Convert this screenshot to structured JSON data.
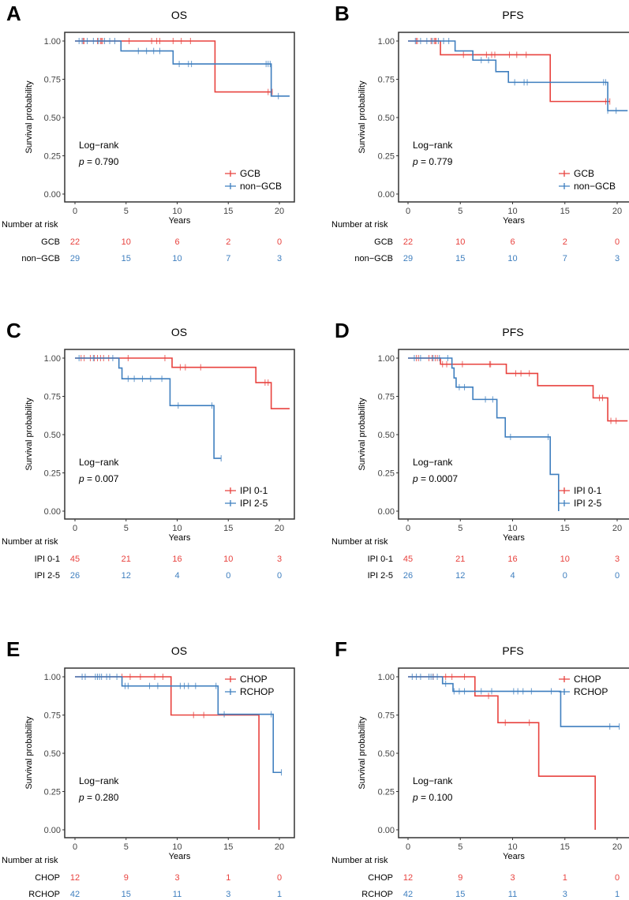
{
  "colors": {
    "group1": "#e8423e",
    "group2": "#3f7fbf",
    "axis": "#333333"
  },
  "common": {
    "ylabel": "Survival probability",
    "xlabel": "Years",
    "risk_title": "Number at risk",
    "logrank": "Log−rank",
    "p_prefix": "p",
    "xticks": [
      0,
      5,
      10,
      15,
      20
    ],
    "yticks": [
      "0.00",
      "0.25",
      "0.50",
      "0.75",
      "1.00"
    ],
    "ylim": [
      0,
      1
    ],
    "xlim": [
      -1,
      21.5
    ]
  },
  "chart_data": [
    {
      "type": "line",
      "letter": "A",
      "title": "OS",
      "p_value": "= 0.790",
      "legend_position": "bottom-right",
      "series": [
        {
          "name": "GCB",
          "steps": [
            [
              0,
              1
            ],
            [
              13.7,
              0.667
            ]
          ],
          "end": 19.3,
          "censors": [
            0.8,
            0.9,
            2.2,
            2.5,
            2.6,
            2.7,
            5.3,
            7.5,
            8,
            8.3,
            9.6,
            10.4,
            11.3,
            18.9,
            19.3
          ],
          "at_risk": [
            22,
            10,
            6,
            2,
            0
          ]
        },
        {
          "name": "non−GCB",
          "steps": [
            [
              0,
              1
            ],
            [
              4.5,
              0.935
            ],
            [
              9.6,
              0.85
            ],
            [
              19.2,
              0.64
            ]
          ],
          "end": 21,
          "censors": [
            0.4,
            0.7,
            1.2,
            1.8,
            2.3,
            2.9,
            3.4,
            3.9,
            6.2,
            7,
            7.7,
            8.3,
            10.2,
            11.1,
            11.4,
            18.7,
            18.9,
            19.1,
            19.9
          ],
          "at_risk": [
            29,
            15,
            10,
            7,
            3
          ]
        }
      ]
    },
    {
      "type": "line",
      "letter": "B",
      "title": "PFS",
      "p_value": "= 0.779",
      "legend_position": "bottom-right",
      "series": [
        {
          "name": "GCB",
          "steps": [
            [
              0,
              1
            ],
            [
              3.1,
              0.91
            ],
            [
              13.6,
              0.605
            ]
          ],
          "end": 19.3,
          "censors": [
            0.8,
            0.9,
            2.2,
            2.5,
            2.6,
            2.7,
            5.3,
            7.5,
            8,
            8.3,
            9.7,
            10.4,
            11.3,
            18.9,
            19.3
          ],
          "at_risk": [
            22,
            10,
            6,
            2,
            0
          ]
        },
        {
          "name": "non−GCB",
          "steps": [
            [
              0,
              1
            ],
            [
              4.5,
              0.935
            ],
            [
              6.2,
              0.875
            ],
            [
              8.4,
              0.8
            ],
            [
              9.6,
              0.73
            ],
            [
              19.1,
              0.545
            ]
          ],
          "end": 21,
          "censors": [
            0.7,
            1.2,
            1.8,
            2.3,
            2.9,
            3.4,
            3.9,
            7,
            7.7,
            10.2,
            11.1,
            11.4,
            18.7,
            18.9,
            19.1,
            19.9
          ],
          "at_risk": [
            29,
            15,
            10,
            7,
            3
          ]
        }
      ]
    },
    {
      "type": "line",
      "letter": "C",
      "title": "OS",
      "p_value": "= 0.007",
      "legend_position": "bottom-right",
      "series": [
        {
          "name": "IPI 0-1",
          "steps": [
            [
              0,
              1
            ],
            [
              9.5,
              0.94
            ],
            [
              17.7,
              0.84
            ],
            [
              19.2,
              0.67
            ]
          ],
          "end": 21,
          "censors": [
            0.6,
            0.9,
            1.5,
            1.9,
            2.2,
            2.5,
            2.8,
            3.3,
            5.2,
            8.8,
            10.3,
            10.8,
            12.3,
            18.6,
            18.9
          ],
          "at_risk": [
            45,
            21,
            16,
            10,
            3
          ]
        },
        {
          "name": "IPI 2-5",
          "steps": [
            [
              0,
              1
            ],
            [
              4.3,
              0.935
            ],
            [
              4.6,
              0.865
            ],
            [
              9.3,
              0.69
            ],
            [
              13.6,
              0.345
            ]
          ],
          "end": 14.3,
          "censors": [
            0.4,
            1.8,
            3.7,
            5.2,
            5.8,
            6.6,
            7.4,
            8.5,
            10.1,
            13.4,
            14.3
          ],
          "at_risk": [
            26,
            12,
            4,
            0,
            0
          ]
        }
      ]
    },
    {
      "type": "line",
      "letter": "D",
      "title": "PFS",
      "p_value": "= 0.0007",
      "legend_position": "bottom-right",
      "series": [
        {
          "name": "IPI 0-1",
          "steps": [
            [
              0,
              1
            ],
            [
              3.1,
              0.96
            ],
            [
              9.4,
              0.9
            ],
            [
              12.4,
              0.82
            ],
            [
              17.7,
              0.74
            ],
            [
              19.1,
              0.59
            ]
          ],
          "end": 21,
          "censors": [
            0.8,
            1.0,
            2.0,
            2.3,
            2.6,
            2.8,
            3.3,
            3.7,
            5.2,
            7.8,
            7.9,
            10.3,
            10.8,
            11.6,
            18.3,
            18.6,
            19.4,
            19.9
          ],
          "at_risk": [
            45,
            21,
            16,
            10,
            3
          ]
        },
        {
          "name": "IPI 2-5",
          "steps": [
            [
              0,
              1
            ],
            [
              4.2,
              0.935
            ],
            [
              4.4,
              0.87
            ],
            [
              4.6,
              0.81
            ],
            [
              6.2,
              0.73
            ],
            [
              8.5,
              0.61
            ],
            [
              9.3,
              0.485
            ],
            [
              13.6,
              0.24
            ],
            [
              14.4,
              0
            ]
          ],
          "end": 14.4,
          "censors": [
            0.6,
            1.2,
            2.4,
            3.0,
            3.8,
            4.9,
            5.4,
            7.4,
            8.1,
            9.8,
            13.4
          ],
          "at_risk": [
            26,
            12,
            4,
            0,
            0
          ]
        }
      ]
    },
    {
      "type": "line",
      "letter": "E",
      "title": "OS",
      "p_value": "= 0.280",
      "legend_position": "top-right",
      "series": [
        {
          "name": "CHOP",
          "steps": [
            [
              0,
              1
            ],
            [
              9.4,
              0.75
            ],
            [
              18,
              0
            ]
          ],
          "end": 18,
          "censors": [
            4.6,
            5.4,
            6.4,
            7.8,
            8.6,
            11.6,
            12.6
          ],
          "at_risk": [
            12,
            9,
            3,
            1,
            0
          ]
        },
        {
          "name": "RCHOP",
          "steps": [
            [
              0,
              1
            ],
            [
              4.6,
              0.94
            ],
            [
              14,
              0.755
            ],
            [
              19.4,
              0.375
            ]
          ],
          "end": 20.2,
          "censors": [
            0.7,
            1,
            2,
            2.2,
            2.4,
            2.6,
            3.1,
            3.4,
            4.1,
            4.9,
            5.2,
            7.3,
            8.1,
            10.3,
            10.7,
            11.1,
            11.8,
            13.8,
            14.6,
            19.2,
            20.2
          ],
          "at_risk": [
            42,
            15,
            11,
            3,
            1
          ]
        }
      ]
    },
    {
      "type": "line",
      "letter": "F",
      "title": "PFS",
      "p_value": "= 0.100",
      "legend_position": "top-right",
      "series": [
        {
          "name": "CHOP",
          "steps": [
            [
              0,
              1
            ],
            [
              6.4,
              0.875
            ],
            [
              8.6,
              0.7
            ],
            [
              12.5,
              0.35
            ],
            [
              17.9,
              0
            ]
          ],
          "end": 17.9,
          "censors": [
            2.4,
            3.6,
            4.2,
            5.4,
            7.7,
            9.3,
            11.6
          ],
          "at_risk": [
            12,
            9,
            3,
            1,
            0
          ]
        },
        {
          "name": "RCHOP",
          "steps": [
            [
              0,
              1
            ],
            [
              3.3,
              0.955
            ],
            [
              4.3,
              0.905
            ],
            [
              14.6,
              0.675
            ]
          ],
          "end": 20.2,
          "censors": [
            0.4,
            0.8,
            1.2,
            2.0,
            2.2,
            2.4,
            2.8,
            3.6,
            4.4,
            4.9,
            5.4,
            7.0,
            8.0,
            10.1,
            10.5,
            11.0,
            11.8,
            13.7,
            19.3,
            20.2
          ],
          "at_risk": [
            42,
            15,
            11,
            3,
            1
          ]
        }
      ]
    }
  ]
}
